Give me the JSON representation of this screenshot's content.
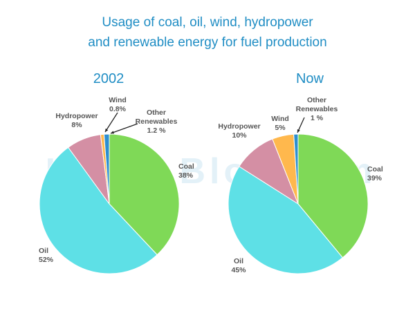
{
  "title": {
    "line1": "Usage of coal, oil, wind, hydropower",
    "line2": "and renewable energy for fuel production"
  },
  "watermark": "IELTS Blog.com",
  "chart_data": [
    {
      "type": "pie",
      "title": "2002",
      "slices": [
        {
          "name": "Coal",
          "value": 38,
          "label": "38%",
          "color": "#7fd957"
        },
        {
          "name": "Oil",
          "value": 52,
          "label": "52%",
          "color": "#5ee0e6"
        },
        {
          "name": "Hydropower",
          "value": 8,
          "label": "8%",
          "color": "#d48fa4"
        },
        {
          "name": "Wind",
          "value": 0.8,
          "label": "0.8%",
          "color": "#ffb84d"
        },
        {
          "name": "Other Renewables",
          "value": 1.2,
          "label": "1.2 %",
          "color": "#2d8fd0"
        }
      ]
    },
    {
      "type": "pie",
      "title": "Now",
      "slices": [
        {
          "name": "Coal",
          "value": 39,
          "label": "39%",
          "color": "#7fd957"
        },
        {
          "name": "Oil",
          "value": 45,
          "label": "45%",
          "color": "#5ee0e6"
        },
        {
          "name": "Hydropower",
          "value": 10,
          "label": "10%",
          "color": "#d48fa4"
        },
        {
          "name": "Wind",
          "value": 5,
          "label": "5%",
          "color": "#ffb84d"
        },
        {
          "name": "Other Renewables",
          "value": 1,
          "label": "1 %",
          "color": "#2d8fd0"
        }
      ]
    }
  ]
}
